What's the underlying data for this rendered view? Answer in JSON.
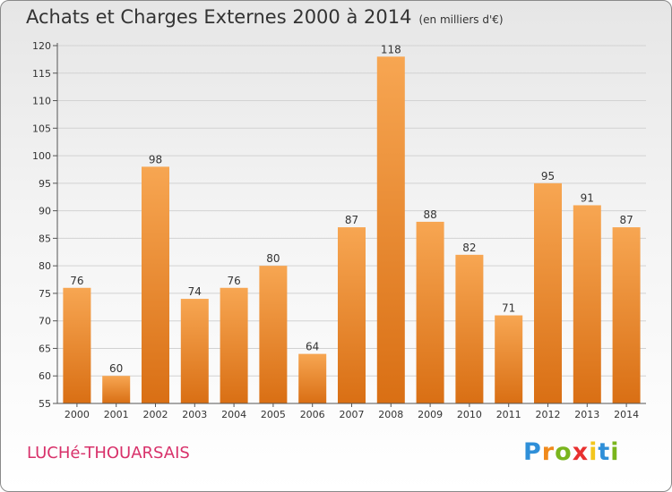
{
  "header": {
    "title": "Achats et Charges Externes 2000 à 2014",
    "unit": "(en milliers d'€)"
  },
  "footer": {
    "commune": "LUCHé-THOUARSAIS",
    "logo_letters": [
      "P",
      "r",
      "o",
      "x",
      "i",
      "t",
      "i"
    ]
  },
  "colors": {
    "bar_top": "#f7a652",
    "bar_bottom": "#d96f14",
    "commune": "#d8316a"
  },
  "chart_data": {
    "type": "bar",
    "title": "Achats et Charges Externes 2000 à 2014",
    "subtitle": "(en milliers d'€)",
    "categories": [
      "2000",
      "2001",
      "2002",
      "2003",
      "2004",
      "2005",
      "2006",
      "2007",
      "2008",
      "2009",
      "2010",
      "2011",
      "2012",
      "2013",
      "2014"
    ],
    "values": [
      76,
      60,
      98,
      74,
      76,
      80,
      64,
      87,
      118,
      88,
      82,
      71,
      95,
      91,
      87
    ],
    "ylim": [
      55,
      120
    ],
    "yticks": [
      55,
      60,
      65,
      70,
      75,
      80,
      85,
      90,
      95,
      100,
      105,
      110,
      115,
      120
    ],
    "grid": true,
    "data_labels": true
  }
}
